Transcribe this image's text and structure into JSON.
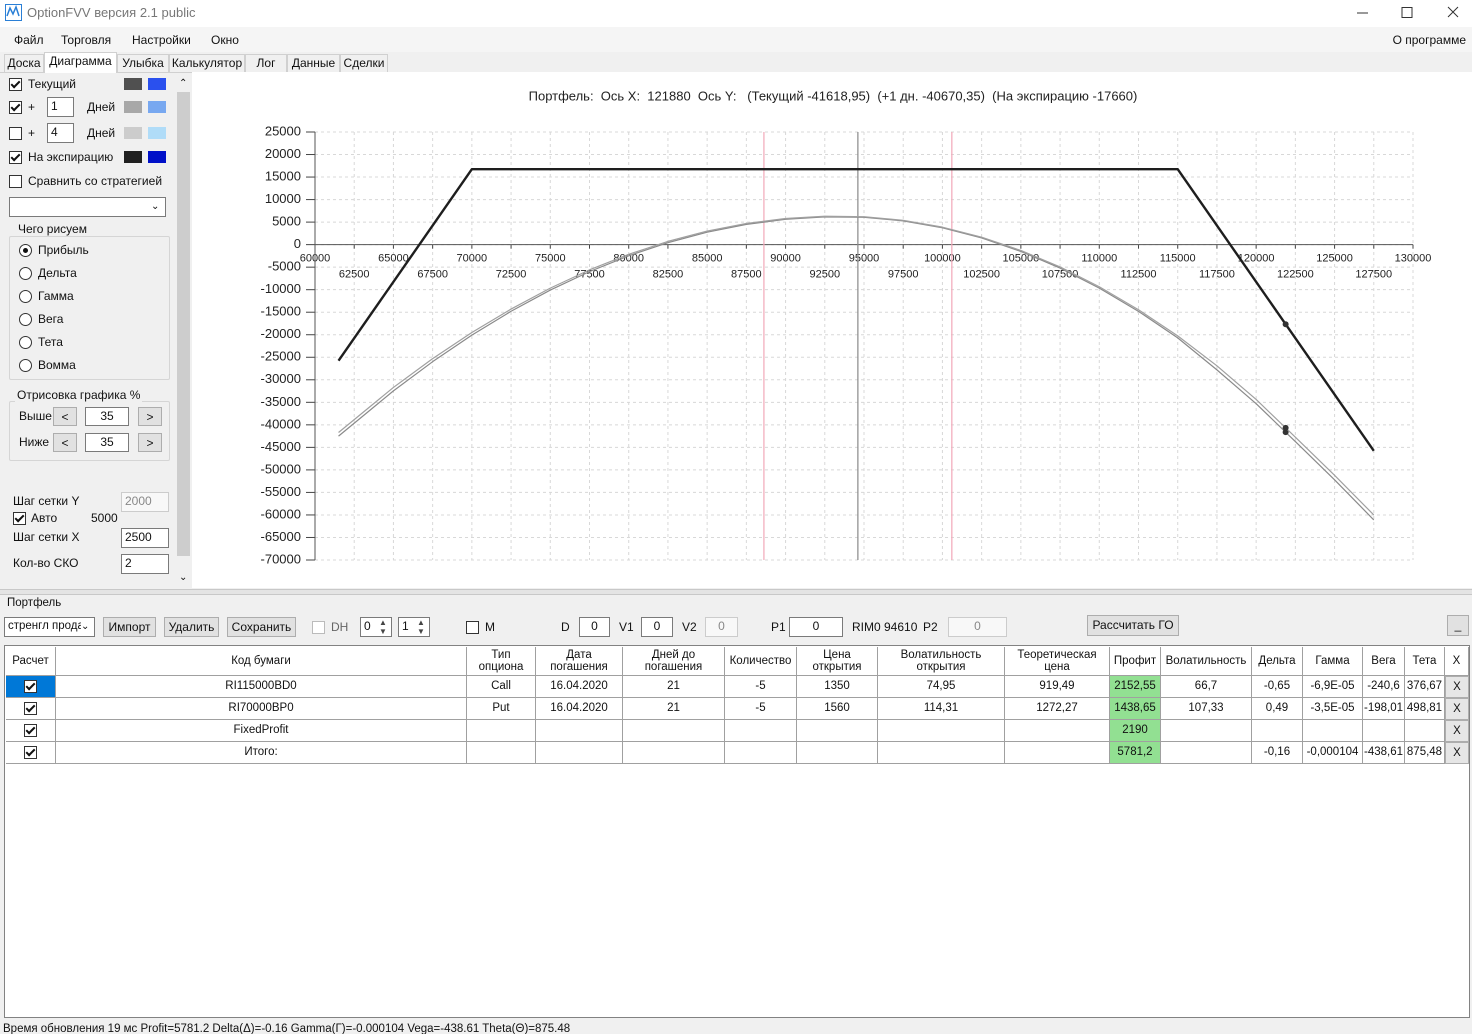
{
  "window": {
    "title": "OptionFVV версия 2.1 public"
  },
  "menu": {
    "items": [
      "Файл",
      "Торговля",
      "Настройки",
      "Окно"
    ],
    "about": "О программе"
  },
  "tabs": [
    "Доска",
    "Диаграмма",
    "Улыбка",
    "Калькулятор",
    "Лог",
    "Данные",
    "Сделки"
  ],
  "left_panel": {
    "current": {
      "checked": true,
      "label": "Текущий",
      "colors": [
        "#505050",
        "#2a50ee"
      ]
    },
    "plus1": {
      "checked": true,
      "sign": "+",
      "value": "1",
      "unit": "Дней",
      "colors": [
        "#a8a8a8",
        "#78a8f0"
      ]
    },
    "plus2": {
      "checked": false,
      "sign": "+",
      "value": "4",
      "unit": "Дней",
      "colors": [
        "#cccccc",
        "#b0dcf8"
      ]
    },
    "expiry": {
      "checked": true,
      "label": "На экспирацию",
      "colors": [
        "#202020",
        "#0010c8"
      ]
    },
    "compare": {
      "checked": false,
      "label": "Сравнить со стратегией"
    },
    "draw_group": {
      "title": "Чего рисуем",
      "options": [
        {
          "label": "Прибыль",
          "checked": true
        },
        {
          "label": "Дельта",
          "checked": false
        },
        {
          "label": "Гамма",
          "checked": false
        },
        {
          "label": "Вега",
          "checked": false
        },
        {
          "label": "Тета",
          "checked": false
        },
        {
          "label": "Вомма",
          "checked": false
        }
      ]
    },
    "render_group": {
      "title": "Отрисовка графика %",
      "above_label": "Выше",
      "above": "35",
      "below_label": "Ниже",
      "below": "35",
      "dec": "<",
      "inc": ">"
    },
    "grid_y": {
      "label": "Шаг сетки Y",
      "value": "2000",
      "disabled": true
    },
    "auto": {
      "checked": true,
      "label": "Авто",
      "value": "5000"
    },
    "grid_x": {
      "label": "Шаг сетки X",
      "value": "2500"
    },
    "sko": {
      "label": "Кол-во СКО",
      "value": "2"
    }
  },
  "chart_data": {
    "type": "line",
    "title": "Портфель:  Ось X:  121880  Ось Y:   (Текущий -41618,95)  (+1 дн. -40670,35)  (На экспирацию -17660)",
    "xlim": [
      60000,
      130000
    ],
    "ylim": [
      -70000,
      25000
    ],
    "xticks": [
      60000,
      62500,
      65000,
      67500,
      70000,
      72500,
      75000,
      77500,
      80000,
      82500,
      85000,
      87500,
      90000,
      92500,
      95000,
      97500,
      100000,
      102500,
      105000,
      107500,
      110000,
      112500,
      115000,
      117500,
      120000,
      122500,
      125000,
      127500,
      130000
    ],
    "yticks": [
      -70000,
      -65000,
      -60000,
      -55000,
      -50000,
      -45000,
      -40000,
      -35000,
      -30000,
      -25000,
      -20000,
      -15000,
      -10000,
      -5000,
      0,
      5000,
      10000,
      15000,
      20000,
      25000
    ],
    "grid": true,
    "cursor_x": 121880,
    "vlines": [
      {
        "x": 88620,
        "color": "#f2a8b8"
      },
      {
        "x": 94610,
        "color": "#8a8a8a"
      },
      {
        "x": 100600,
        "color": "#f2a8b8"
      }
    ],
    "series": [
      {
        "color": "#8a8a8a",
        "line_width": 1.2,
        "x": [
          61500,
          65000,
          67500,
          70000,
          72500,
          75000,
          77500,
          80000,
          82500,
          85000,
          87500,
          90000,
          92500,
          95000,
          97500,
          100000,
          102500,
          105000,
          107500,
          110000,
          112500,
          115000,
          117500,
          120000,
          121880,
          122500,
          125000,
          127500
        ],
        "values": [
          -42500,
          -32460,
          -25980,
          -20090,
          -14790,
          -10090,
          -5990,
          -2475,
          440,
          2760,
          4490,
          5620,
          6150,
          6070,
          5270,
          3740,
          1490,
          -1500,
          -5210,
          -9650,
          -14810,
          -20700,
          -27800,
          -35300,
          -41618.95,
          -43700,
          -52200,
          -61100
        ]
      },
      {
        "color": "#a0a0a0",
        "line_width": 1.2,
        "x": [
          61500,
          65000,
          67500,
          70000,
          72500,
          75000,
          77500,
          80000,
          82500,
          85000,
          87500,
          90000,
          92500,
          95000,
          97500,
          100000,
          102500,
          105000,
          107500,
          110000,
          112500,
          115000,
          117500,
          120000,
          121880,
          122500,
          125000,
          127500
        ],
        "values": [
          -41700,
          -31700,
          -25300,
          -19500,
          -14300,
          -9650,
          -5600,
          -2150,
          720,
          3000,
          4700,
          5800,
          6300,
          6200,
          5400,
          3880,
          1650,
          -1300,
          -4950,
          -9350,
          -14450,
          -20250,
          -26900,
          -34370,
          -40670.35,
          -42750,
          -51200,
          -60000
        ]
      },
      {
        "color": "#1e1e1e",
        "line_width": 2.4,
        "x": [
          61500,
          70000,
          115000,
          121880,
          127500
        ],
        "values": [
          -25760,
          16740,
          16740,
          -17660,
          -45760
        ]
      }
    ]
  },
  "portfolio": {
    "title": "Портфель",
    "select": "стренгл прода",
    "buttons": [
      "Импорт",
      "Удалить",
      "Сохранить"
    ],
    "dh": {
      "checked": false,
      "label": "DH",
      "values": [
        "0",
        "1"
      ]
    },
    "m": {
      "checked": false,
      "label": "M"
    },
    "d_label": "D",
    "d": "0",
    "v1_label": "V1",
    "v1": "0",
    "v2_label": "V2",
    "v2": "0",
    "p1_label": "P1",
    "p1": "0",
    "rim": "RIM0 94610",
    "p2_label": "P2",
    "p2": "0",
    "calc": "Рассчитать ГО",
    "minimize": "_"
  },
  "table": {
    "headers": [
      "Расчет",
      "Код бумаги",
      "Тип\nопциона",
      "Дата\nпогашения",
      "Дней до\nпогашения",
      "Количество",
      "Цена\nоткрытия",
      "Волатильность\nоткрытия",
      "Теоретическая\nцена",
      "Профит",
      "Волатильность",
      "Дельта",
      "Гамма",
      "Вега",
      "Тета",
      "X"
    ],
    "rows": [
      {
        "checked": true,
        "cells": [
          "RI115000BD0",
          "Call",
          "16.04.2020",
          "21",
          "-5",
          "1350",
          "74,95",
          "919,49",
          "2152,55",
          "66,7",
          "-0,65",
          "-6,9E-05",
          "-240,6",
          "376,67",
          "X"
        ]
      },
      {
        "checked": true,
        "cells": [
          "RI70000BP0",
          "Put",
          "16.04.2020",
          "21",
          "-5",
          "1560",
          "114,31",
          "1272,27",
          "1438,65",
          "107,33",
          "0,49",
          "-3,5E-05",
          "-198,01",
          "498,81",
          "X"
        ]
      },
      {
        "checked": true,
        "cells": [
          "FixedProfit",
          null,
          null,
          null,
          null,
          null,
          null,
          null,
          "2190",
          null,
          null,
          null,
          null,
          null,
          "X"
        ]
      },
      {
        "checked": true,
        "cells": [
          "Итого:",
          null,
          null,
          null,
          null,
          null,
          null,
          null,
          "5781,2",
          null,
          "-0,16",
          "-0,000104",
          "-438,61",
          "875,48",
          "X"
        ]
      }
    ]
  },
  "status": "Время обновления 19 мс  Profit=5781.2 Delta(Δ)=-0.16 Gamma(Γ)=-0.000104 Vega=-438.61 Theta(Θ)=875.48"
}
